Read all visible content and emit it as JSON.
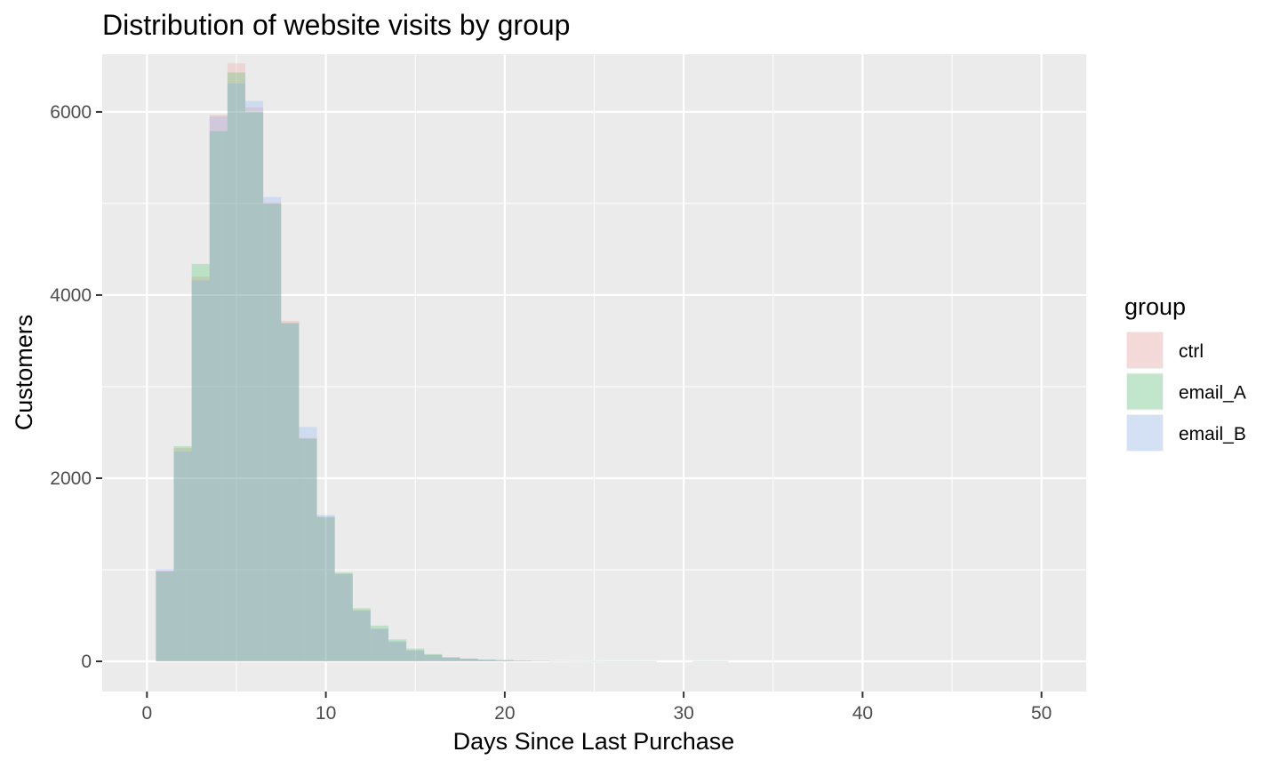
{
  "chart_data": {
    "type": "bar",
    "title": "Distribution of website visits by group",
    "xlabel": "Days Since Last Purchase",
    "ylabel": "Customers",
    "xlim": [
      -2.5,
      52.5
    ],
    "ylim": [
      -330,
      6630
    ],
    "x_ticks": [
      0,
      10,
      20,
      30,
      40,
      50
    ],
    "y_ticks": [
      0,
      2000,
      4000,
      6000
    ],
    "grid": true,
    "bin_width": 1,
    "x": [
      1,
      2,
      3,
      4,
      5,
      6,
      7,
      8,
      9,
      10,
      11,
      12,
      13,
      14,
      15,
      16,
      17,
      18,
      19,
      20,
      21,
      22,
      23,
      24,
      25,
      26,
      27,
      28,
      29,
      30,
      31,
      32
    ],
    "legend": {
      "title": "group",
      "position": "right"
    },
    "series": [
      {
        "name": "ctrl",
        "color": "#F8766D",
        "values": [
          990,
          2330,
          4200,
          5970,
          6530,
          6050,
          5010,
          3720,
          2440,
          1570,
          960,
          560,
          360,
          210,
          120,
          70,
          40,
          28,
          18,
          12,
          8,
          5,
          3,
          2,
          2,
          1,
          1,
          1,
          0,
          0,
          1,
          1
        ]
      },
      {
        "name": "email_A",
        "color": "#00BA38",
        "values": [
          980,
          2350,
          4340,
          5790,
          6430,
          6000,
          5000,
          3690,
          2430,
          1580,
          970,
          580,
          390,
          240,
          140,
          80,
          45,
          30,
          20,
          14,
          9,
          6,
          4,
          3,
          2,
          1,
          1,
          1,
          0,
          0,
          1,
          1
        ]
      },
      {
        "name": "email_B",
        "color": "#619CFF",
        "values": [
          1010,
          2290,
          4160,
          5950,
          6310,
          6120,
          5070,
          3700,
          2560,
          1600,
          950,
          550,
          350,
          220,
          120,
          70,
          42,
          29,
          19,
          13,
          8,
          5,
          3,
          2,
          2,
          1,
          1,
          1,
          0,
          0,
          1,
          1
        ]
      }
    ]
  }
}
